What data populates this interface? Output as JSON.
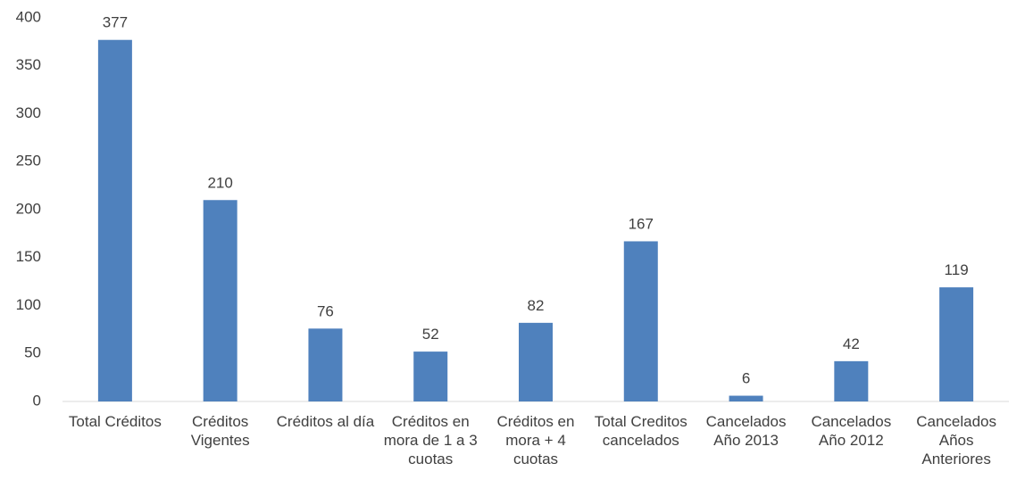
{
  "chart_data": {
    "type": "bar",
    "categories": [
      "Total Créditos",
      "Créditos Vigentes",
      "Créditos al día",
      "Créditos en mora de 1 a 3 cuotas",
      "Créditos en mora + 4 cuotas",
      "Total Creditos cancelados",
      "Cancelados Año 2013",
      "Cancelados Año 2012",
      "Cancelados Años Anteriores"
    ],
    "values": [
      377,
      210,
      76,
      52,
      82,
      167,
      6,
      42,
      119
    ],
    "color": "#4f81bd",
    "ylim": [
      0,
      400
    ],
    "yticks": [
      0,
      50,
      100,
      150,
      200,
      250,
      300,
      350,
      400
    ],
    "grid": false
  }
}
